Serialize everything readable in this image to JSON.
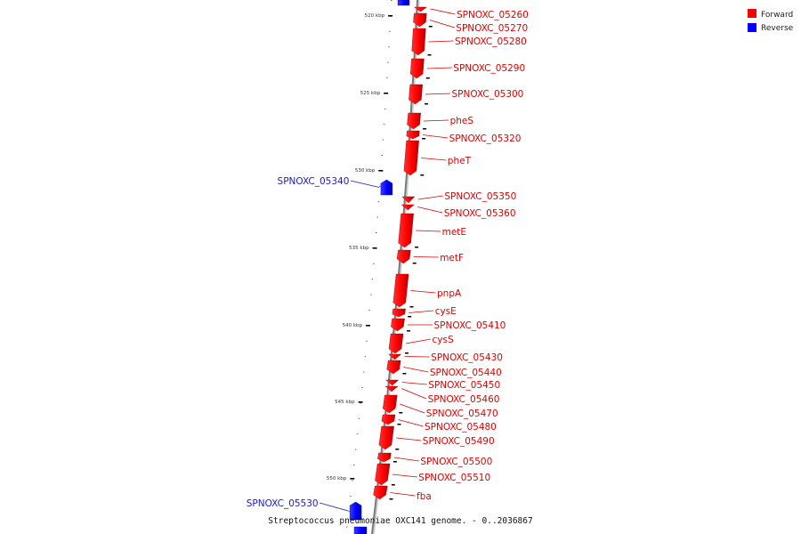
{
  "caption": "Streptococcus pneumoniae OXC141 genome. - 0..2036867",
  "legend": [
    {
      "label": "Forward",
      "color": "#ff0000"
    },
    {
      "label": "Reverse",
      "color": "#0000ff"
    }
  ],
  "colors": {
    "forward": "#ff0000",
    "reverse": "#0000ff",
    "backbone": "#888888"
  },
  "ticks": [
    {
      "label": "520 kbp"
    },
    {
      "label": "525 kbp"
    },
    {
      "label": "530 kbp"
    },
    {
      "label": "535 kbp"
    },
    {
      "label": "540 kbp"
    },
    {
      "label": "545 kbp"
    },
    {
      "label": "550 kbp"
    }
  ],
  "genes": [
    {
      "name": "SPNOXC_05260",
      "strand": "forward"
    },
    {
      "name": "SPNOXC_05270",
      "strand": "forward"
    },
    {
      "name": "SPNOXC_05280",
      "strand": "forward"
    },
    {
      "name": "SPNOXC_05290",
      "strand": "forward"
    },
    {
      "name": "SPNOXC_05300",
      "strand": "forward"
    },
    {
      "name": "pheS",
      "strand": "forward"
    },
    {
      "name": "SPNOXC_05320",
      "strand": "forward"
    },
    {
      "name": "pheT",
      "strand": "forward"
    },
    {
      "name": "SPNOXC_05340",
      "strand": "reverse"
    },
    {
      "name": "SPNOXC_05350",
      "strand": "forward"
    },
    {
      "name": "SPNOXC_05360",
      "strand": "forward"
    },
    {
      "name": "metE",
      "strand": "forward"
    },
    {
      "name": "metF",
      "strand": "forward"
    },
    {
      "name": "pnpA",
      "strand": "forward"
    },
    {
      "name": "cysE",
      "strand": "forward"
    },
    {
      "name": "SPNOXC_05410",
      "strand": "forward"
    },
    {
      "name": "cysS",
      "strand": "forward"
    },
    {
      "name": "SPNOXC_05430",
      "strand": "forward"
    },
    {
      "name": "SPNOXC_05440",
      "strand": "forward"
    },
    {
      "name": "SPNOXC_05450",
      "strand": "forward"
    },
    {
      "name": "SPNOXC_05460",
      "strand": "forward"
    },
    {
      "name": "SPNOXC_05470",
      "strand": "forward"
    },
    {
      "name": "SPNOXC_05480",
      "strand": "forward"
    },
    {
      "name": "SPNOXC_05490",
      "strand": "forward"
    },
    {
      "name": "SPNOXC_05500",
      "strand": "forward"
    },
    {
      "name": "SPNOXC_05510",
      "strand": "forward"
    },
    {
      "name": "fba",
      "strand": "forward"
    },
    {
      "name": "SPNOXC_05530",
      "strand": "reverse"
    }
  ]
}
